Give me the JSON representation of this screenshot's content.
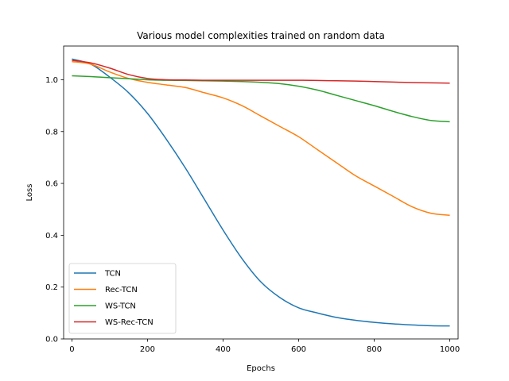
{
  "chart_data": {
    "type": "line",
    "title": "Various model complexities trained on random data",
    "xlabel": "Epochs",
    "ylabel": "Loss",
    "xlim": [
      -22,
      1022
    ],
    "ylim": [
      0.0,
      1.13
    ],
    "xticks": [
      0,
      200,
      400,
      600,
      800,
      1000
    ],
    "yticks": [
      0.0,
      0.2,
      0.4,
      0.6,
      0.8,
      1.0
    ],
    "xtick_labels": [
      "0",
      "200",
      "400",
      "600",
      "800",
      "1000"
    ],
    "ytick_labels": [
      "0.0",
      "0.2",
      "0.4",
      "0.6",
      "0.8",
      "1.0"
    ],
    "legend_position": "lower-left",
    "grid": false,
    "x": [
      0,
      50,
      100,
      150,
      200,
      250,
      300,
      350,
      400,
      450,
      500,
      550,
      600,
      650,
      700,
      750,
      800,
      850,
      900,
      950,
      1000
    ],
    "series": [
      {
        "name": "TCN",
        "color": "#1f77b4",
        "values": [
          1.08,
          1.06,
          1.01,
          0.95,
          0.87,
          0.77,
          0.66,
          0.54,
          0.42,
          0.31,
          0.22,
          0.16,
          0.12,
          0.1,
          0.083,
          0.072,
          0.064,
          0.058,
          0.054,
          0.051,
          0.05
        ]
      },
      {
        "name": "Rec-TCN",
        "color": "#ff7f0e",
        "values": [
          1.07,
          1.06,
          1.03,
          1.005,
          0.99,
          0.98,
          0.97,
          0.95,
          0.93,
          0.9,
          0.86,
          0.82,
          0.78,
          0.73,
          0.68,
          0.63,
          0.59,
          0.55,
          0.51,
          0.485,
          0.477
        ]
      },
      {
        "name": "WS-TCN",
        "color": "#2ca02c",
        "values": [
          1.015,
          1.012,
          1.008,
          1.004,
          1.0,
          0.998,
          0.997,
          0.996,
          0.995,
          0.993,
          0.99,
          0.985,
          0.975,
          0.96,
          0.94,
          0.92,
          0.9,
          0.878,
          0.858,
          0.843,
          0.838
        ]
      },
      {
        "name": "WS-Rec-TCN",
        "color": "#d62728",
        "values": [
          1.075,
          1.065,
          1.045,
          1.02,
          1.005,
          1.0,
          0.999,
          0.998,
          0.998,
          0.998,
          0.998,
          0.998,
          0.998,
          0.997,
          0.996,
          0.995,
          0.993,
          0.991,
          0.989,
          0.988,
          0.987
        ]
      }
    ]
  }
}
